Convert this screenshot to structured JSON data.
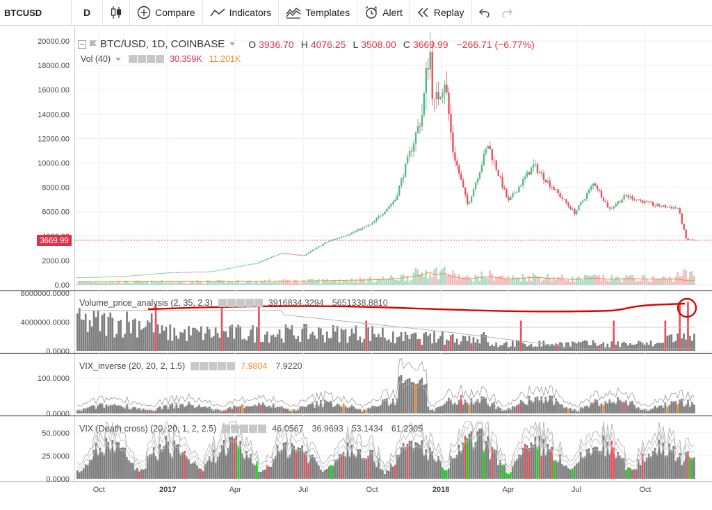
{
  "toolbar": {
    "symbol": "BTCUSD",
    "interval": "D",
    "compare": "Compare",
    "indicators": "Indicators",
    "templates": "Templates",
    "alert": "Alert",
    "replay": "Replay"
  },
  "main_legend": {
    "title": "BTC/USD, 1D, COINBASE",
    "o_label": "O",
    "o_value": "3936.70",
    "h_label": "H",
    "h_value": "4076.25",
    "l_label": "L",
    "l_value": "3508.00",
    "c_label": "C",
    "c_value": "3669.99",
    "change": "−266.71 (−6.77%)",
    "vol_title": "Vol (40)",
    "vol_value": "30.359K",
    "vol_ma": "11.201K"
  },
  "price_tag": "3669.99",
  "vpa_legend": {
    "title": "Volume_price_analysis (2, 35, 2.3)",
    "v1": "3916834.3294",
    "v2": "5651338.8810"
  },
  "vixinv_legend": {
    "title": "VIX_inverse (20, 20, 2, 1.5)",
    "v1": "7.9804",
    "v2": "7.9220"
  },
  "vixdc_legend": {
    "title": "VIX (Death cross) (20, 20, 1, 2, 2.5)",
    "v1": "46.0567",
    "v2": "36.9693",
    "v3": "53.1434",
    "v4": "61.2305"
  },
  "colors": {
    "up": "#53b987",
    "down": "#eb4d5c",
    "price_line": "#e0314b",
    "annotation": "#e00000",
    "vol_ma": "#f48a2a",
    "bar_gray": "#777777",
    "orange": "#f48a2a",
    "green": "#00e000"
  },
  "chart_data": [
    {
      "type": "line",
      "title": "BTC/USD, 1D, COINBASE",
      "y_ticks": [
        "20000.00",
        "18000.00",
        "16000.00",
        "14000.00",
        "12000.00",
        "10000.00",
        "8000.00",
        "6000.00",
        "4000.00",
        "2000.00",
        "0.00"
      ],
      "ylim": [
        0,
        20000
      ],
      "x_ticks": [
        "Oct",
        "2017",
        "Apr",
        "Jul",
        "Oct",
        "2018",
        "Apr",
        "Jul",
        "Oct"
      ],
      "x": [
        "2016-09",
        "2016-11",
        "2017-01",
        "2017-03",
        "2017-05",
        "2017-06",
        "2017-07",
        "2017-08",
        "2017-09",
        "2017-10",
        "2017-11",
        "2017-12-07",
        "2017-12-17",
        "2017-12-22",
        "2018-01-06",
        "2018-01-17",
        "2018-02-06",
        "2018-03-05",
        "2018-04-01",
        "2018-05-05",
        "2018-06-29",
        "2018-07-25",
        "2018-08-14",
        "2018-09-05",
        "2018-10-15",
        "2018-11-14",
        "2018-11-25",
        "2018-12-07"
      ],
      "series": [
        {
          "values": [
            600,
            700,
            1000,
            1100,
            1800,
            2600,
            2400,
            3500,
            4200,
            5000,
            7000,
            14000,
            19800,
            14500,
            17000,
            11000,
            6500,
            11500,
            6800,
            9800,
            5900,
            8400,
            6200,
            7300,
            6500,
            6300,
            3700,
            3669.99
          ]
        }
      ],
      "last_price": 3669.99
    },
    {
      "type": "bar",
      "title": "Volume_price_analysis (2, 35, 2.3)",
      "y_ticks": [
        "8000000.0000",
        "4000000.0000",
        "0.0000"
      ],
      "ylim": [
        0,
        8000000
      ]
    },
    {
      "type": "bar",
      "title": "VIX_inverse (20, 20, 2, 1.5)",
      "y_ticks": [
        "100.0000",
        "0.0000"
      ],
      "ylim": [
        0,
        160
      ]
    },
    {
      "type": "bar",
      "title": "VIX (Death cross) (20, 20, 1, 2, 2.5)",
      "y_ticks": [
        "50.0000",
        "25.0000",
        "0.0000"
      ],
      "ylim": [
        0,
        65
      ]
    }
  ]
}
